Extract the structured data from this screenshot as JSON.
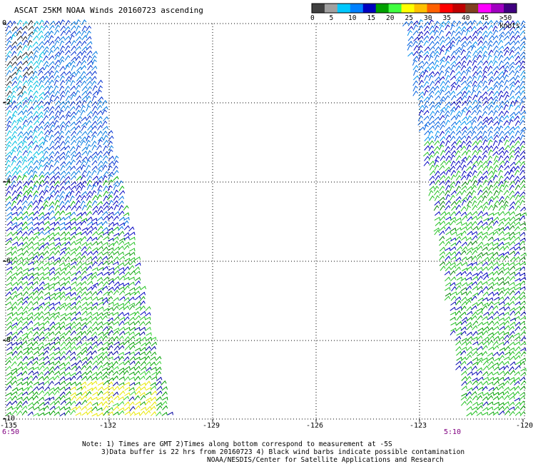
{
  "title": "ASCAT 25KM NOAA Winds 20160723 ascending",
  "colorbar": {
    "labels": [
      "0",
      "5",
      "10",
      "15",
      "20",
      "25",
      "30",
      "35",
      "40",
      "45",
      ">50 knots"
    ],
    "colors": [
      "#404040",
      "#a0a0a0",
      "#00c8ff",
      "#0080ff",
      "#0000c0",
      "#00a000",
      "#40ff40",
      "#ffff00",
      "#ffc000",
      "#ff6000",
      "#ff0000",
      "#c00000",
      "#804020",
      "#ff00ff",
      "#a000c0",
      "#400080"
    ]
  },
  "axes": {
    "x_ticks": [
      "-135",
      "-132",
      "-129",
      "-126",
      "-123",
      "-120"
    ],
    "y_ticks": [
      "0",
      "-2",
      "-4",
      "-6",
      "-8",
      "-10"
    ]
  },
  "times": {
    "left": "6:50",
    "right": "5:10"
  },
  "notes": {
    "line1": "Note: 1) Times are GMT 2)Times along bottom correspond to measurement at -5S",
    "line2": "3)Data buffer is 22 hrs from 20160723 4) Black wind barbs indicate possible contamination",
    "line3": "NOAA/NESDIS/Center for Satellite Applications and Research"
  }
}
